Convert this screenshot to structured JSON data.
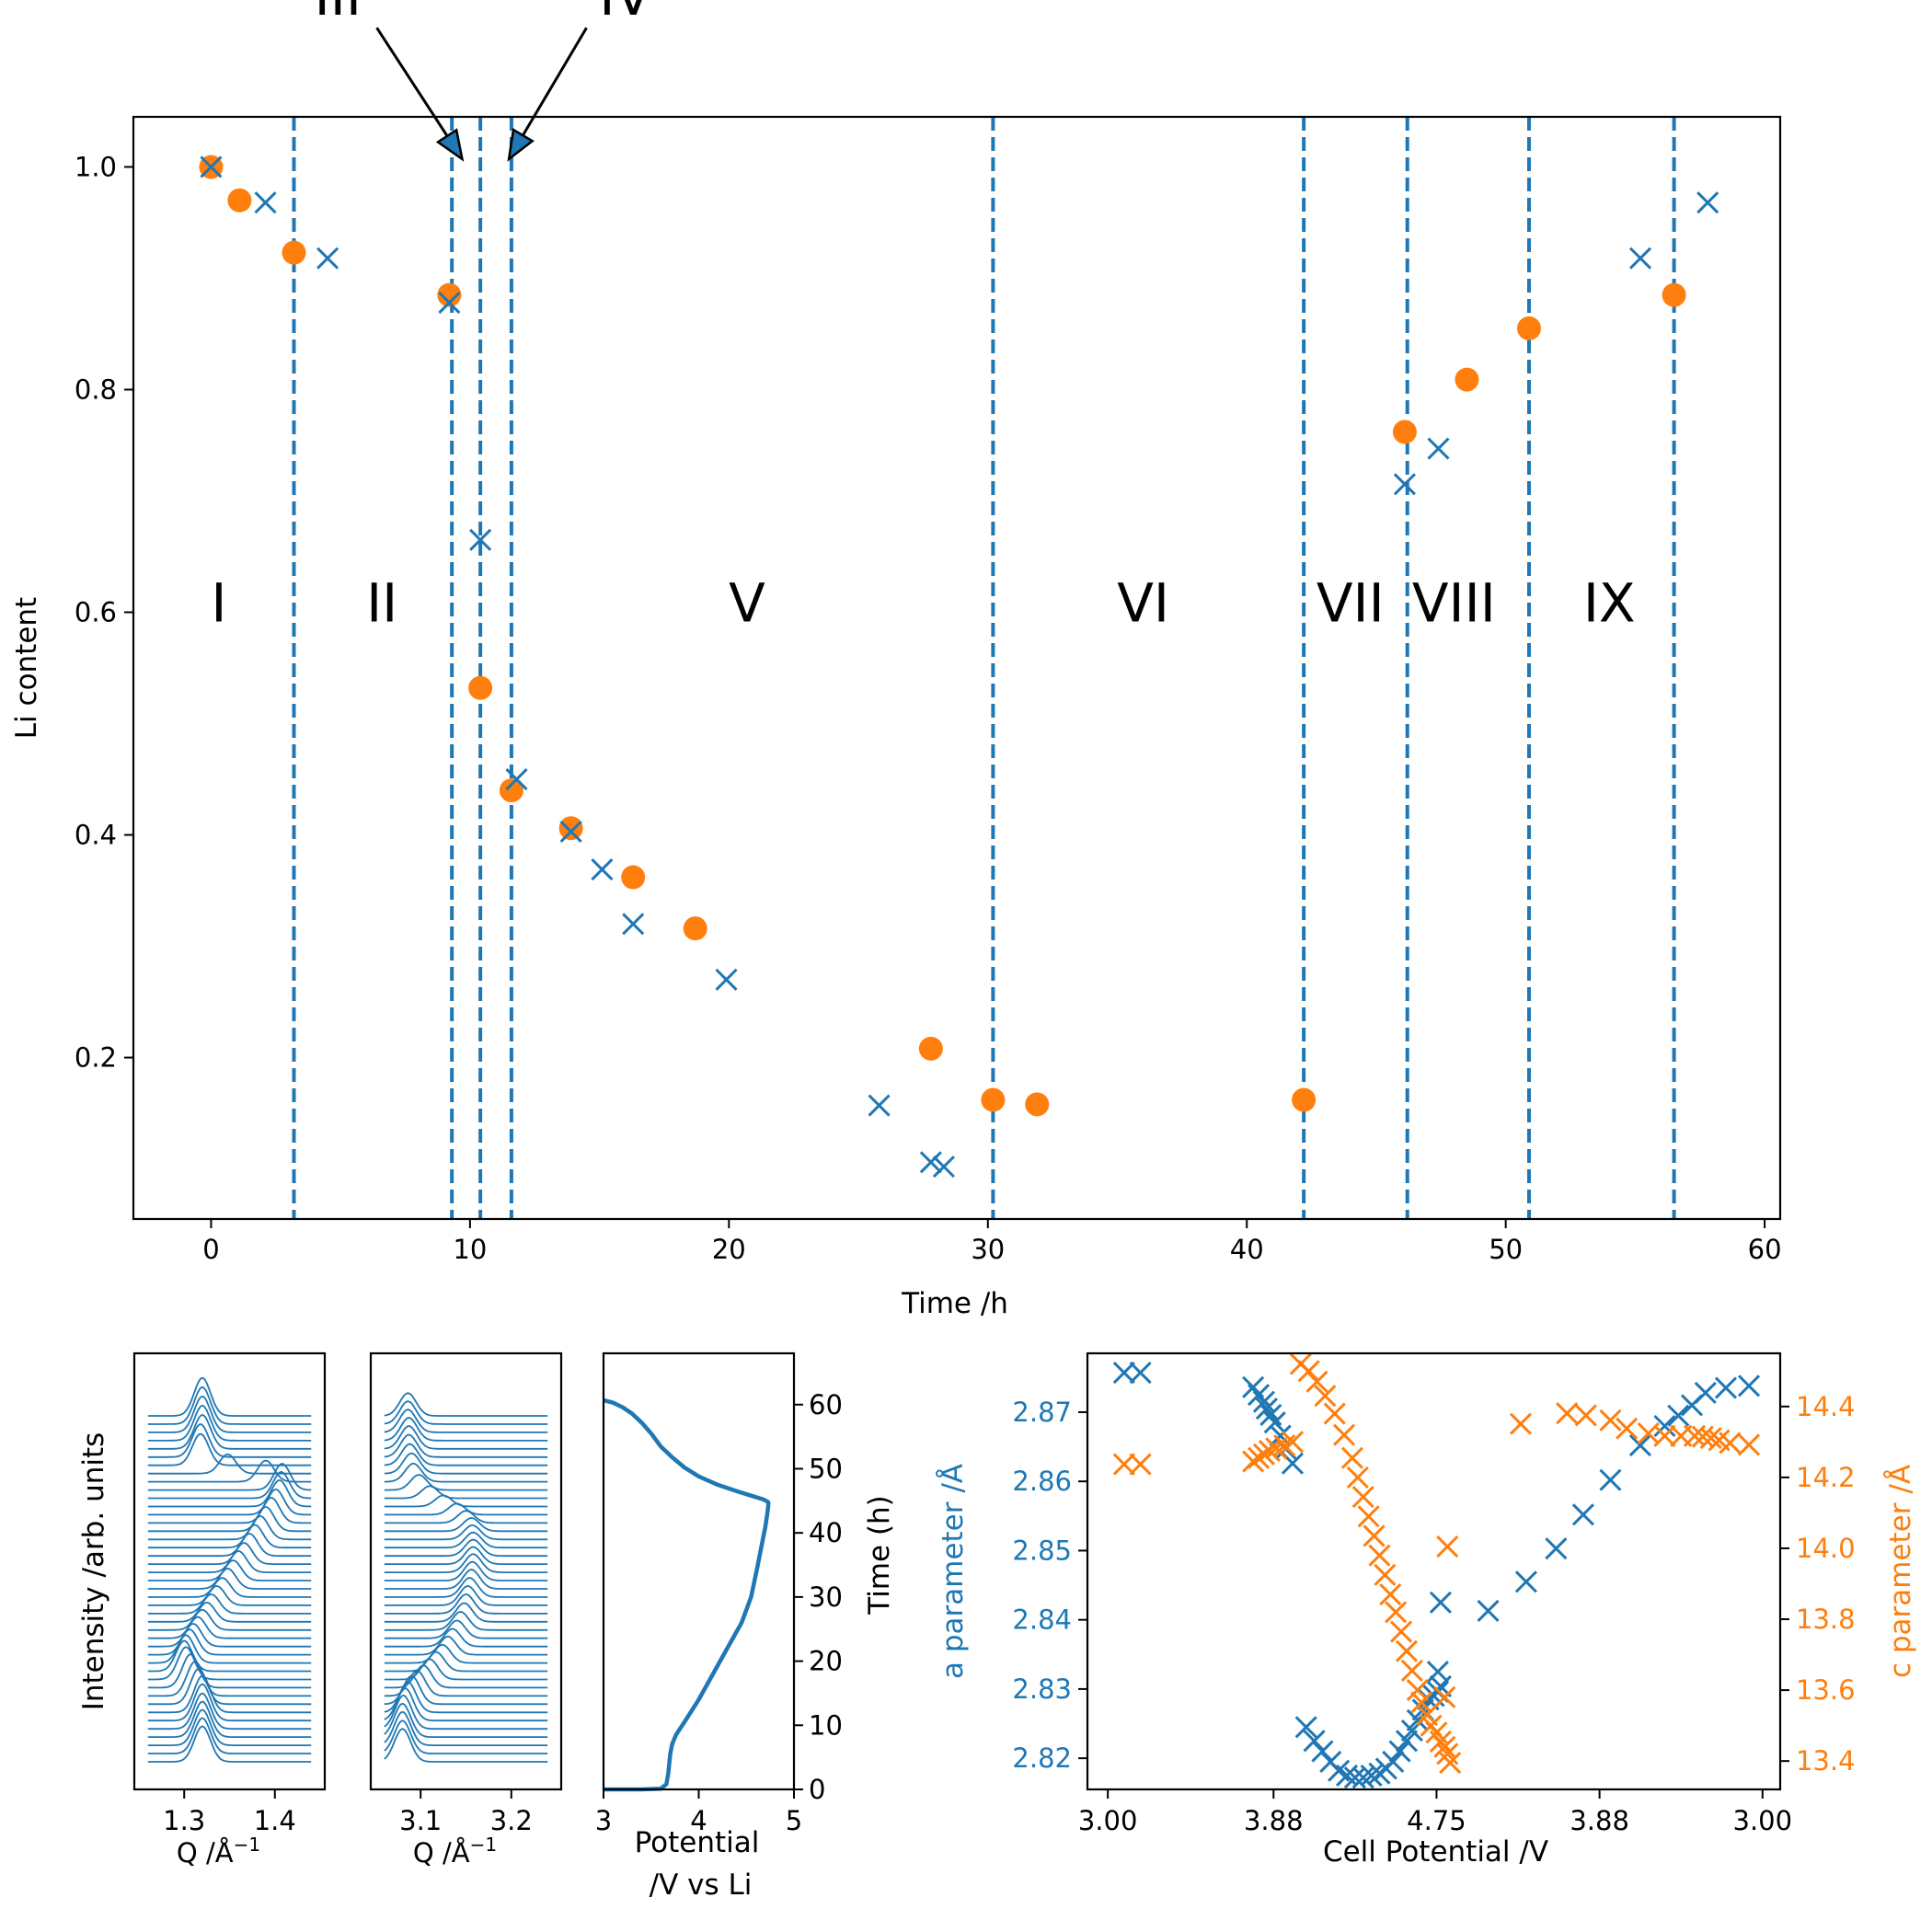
{
  "colors": {
    "blue": "#1f77b4",
    "orange": "#ff7f0e",
    "axis": "#000000"
  },
  "chart_data": [
    {
      "id": "main",
      "type": "scatter",
      "xlabel": "Time /h",
      "ylabel": "Li content",
      "xlim": [
        -3,
        60.6
      ],
      "ylim": [
        0.055,
        1.045
      ],
      "xticks": [
        0,
        10,
        20,
        30,
        40,
        50,
        60
      ],
      "yticks": [
        0.2,
        0.4,
        0.6,
        0.8,
        1.0
      ],
      "ytick_labels": [
        "0.2",
        "0.4",
        "0.6",
        "0.8",
        "1.0"
      ],
      "grid": false,
      "series": [
        {
          "marker": "circle",
          "color": "#ff7f0e",
          "x": [
            0.0,
            1.1,
            3.2,
            9.2,
            10.4,
            11.6,
            13.9,
            16.3,
            18.7,
            27.8,
            30.2,
            31.9,
            42.2,
            46.1,
            48.5,
            50.9,
            56.5
          ],
          "y": [
            1.0,
            0.97,
            0.923,
            0.885,
            0.532,
            0.44,
            0.406,
            0.362,
            0.316,
            0.208,
            0.162,
            0.158,
            0.162,
            0.762,
            0.809,
            0.855,
            0.885
          ]
        },
        {
          "marker": "x",
          "color": "#1f77b4",
          "x": [
            0.0,
            2.1,
            4.5,
            9.2,
            10.4,
            11.8,
            13.9,
            15.1,
            16.3,
            19.9,
            25.8,
            27.8,
            28.3,
            46.1,
            47.4,
            55.2,
            57.8
          ],
          "y": [
            1.0,
            0.968,
            0.918,
            0.878,
            0.665,
            0.45,
            0.403,
            0.369,
            0.32,
            0.27,
            0.157,
            0.106,
            0.102,
            0.715,
            0.747,
            0.918,
            0.968
          ]
        }
      ],
      "vlines": [
        3.2,
        9.3,
        10.4,
        11.6,
        30.2,
        42.2,
        46.2,
        50.9,
        56.5
      ],
      "regions": [
        {
          "label": "I",
          "x": 0.3,
          "y": 0.61
        },
        {
          "label": "II",
          "x": 6.6,
          "y": 0.61
        },
        {
          "label": "V",
          "x": 20.7,
          "y": 0.61
        },
        {
          "label": "VI",
          "x": 36.0,
          "y": 0.61
        },
        {
          "label": "VII",
          "x": 44.0,
          "y": 0.61
        },
        {
          "label": "VIII",
          "x": 48.0,
          "y": 0.61
        },
        {
          "label": "IX",
          "x": 54.0,
          "y": 0.61
        }
      ],
      "arrow_labels": [
        {
          "label": "III",
          "text_x": 4.9,
          "text_y": 1.155,
          "tail_x": 6.4,
          "tail_y": 1.125,
          "head_x": 9.7,
          "head_y": 1.007
        },
        {
          "label": "IV",
          "text_x": 16.0,
          "text_y": 1.155,
          "tail_x": 14.5,
          "tail_y": 1.125,
          "head_x": 11.5,
          "head_y": 1.007
        }
      ]
    },
    {
      "id": "xrd1",
      "type": "line",
      "xlabel": "Q /Å",
      "xlabel_sup": "−1",
      "ylabel": "Intensity /arb. units",
      "xlim": [
        1.245,
        1.455
      ],
      "xticks": [
        1.3,
        1.4
      ],
      "xtick_labels": [
        "1.3",
        "1.4"
      ],
      "n_traces": 43,
      "peak_centers": [
        1.32,
        1.32,
        1.32,
        1.32,
        1.32,
        1.32,
        1.32,
        1.316,
        1.312,
        1.307,
        1.302,
        1.3,
        1.302,
        1.306,
        1.31,
        1.315,
        1.32,
        1.325,
        1.33,
        1.336,
        1.342,
        1.348,
        1.354,
        1.36,
        1.366,
        1.372,
        1.378,
        1.384,
        1.39,
        1.396,
        1.401,
        1.405,
        1.407,
        1.408,
        1.39,
        1.348,
        1.318,
        1.318,
        1.32,
        1.32,
        1.32,
        1.32,
        1.32
      ],
      "peak_heights": [
        0.7,
        0.7,
        0.7,
        0.7,
        0.7,
        0.72,
        0.72,
        0.7,
        0.68,
        0.66,
        0.64,
        0.6,
        0.55,
        0.5,
        0.45,
        0.42,
        0.4,
        0.38,
        0.38,
        0.38,
        0.38,
        0.4,
        0.4,
        0.42,
        0.42,
        0.44,
        0.45,
        0.46,
        0.48,
        0.5,
        0.5,
        0.52,
        0.52,
        0.52,
        0.42,
        0.38,
        0.62,
        0.65,
        0.67,
        0.69,
        0.71,
        0.73,
        0.75
      ],
      "peak_width": 0.009
    },
    {
      "id": "xrd2",
      "type": "line",
      "xlabel": "Q /Å",
      "xlabel_sup": "−1",
      "xlim": [
        3.045,
        3.255
      ],
      "xticks": [
        3.1,
        3.2
      ],
      "xtick_labels": [
        "3.1",
        "3.2"
      ],
      "n_traces": 43,
      "peak_centers": [
        3.08,
        3.08,
        3.08,
        3.08,
        3.081,
        3.083,
        3.086,
        3.09,
        3.096,
        3.103,
        3.11,
        3.117,
        3.124,
        3.13,
        3.135,
        3.14,
        3.144,
        3.148,
        3.15,
        3.152,
        3.154,
        3.156,
        3.157,
        3.158,
        3.158,
        3.158,
        3.158,
        3.157,
        3.156,
        3.15,
        3.14,
        3.125,
        3.11,
        3.098,
        3.092,
        3.09,
        3.088,
        3.087,
        3.087,
        3.087,
        3.086,
        3.086,
        3.086
      ],
      "peak_heights": [
        0.65,
        0.65,
        0.66,
        0.66,
        0.66,
        0.64,
        0.6,
        0.56,
        0.5,
        0.44,
        0.4,
        0.38,
        0.36,
        0.36,
        0.35,
        0.35,
        0.36,
        0.37,
        0.38,
        0.38,
        0.38,
        0.38,
        0.37,
        0.36,
        0.34,
        0.32,
        0.3,
        0.28,
        0.26,
        0.24,
        0.22,
        0.22,
        0.24,
        0.3,
        0.36,
        0.4,
        0.42,
        0.44,
        0.45,
        0.45,
        0.45,
        0.45,
        0.45
      ],
      "peak_width": 0.009
    },
    {
      "id": "echem",
      "type": "line",
      "xlabel_lines": [
        "Potential",
        "/V vs Li"
      ],
      "ylabel": "Time (h)",
      "xlim": [
        3.0,
        5.0
      ],
      "ylim": [
        0,
        68
      ],
      "xticks": [
        3,
        4,
        5
      ],
      "yticks": [
        0,
        10,
        20,
        30,
        40,
        50,
        60
      ],
      "x": [
        3.0,
        3.4,
        3.6,
        3.66,
        3.68,
        3.7,
        3.72,
        3.76,
        3.85,
        4.0,
        4.15,
        4.3,
        4.45,
        4.55,
        4.62,
        4.66,
        4.7,
        4.72,
        4.73,
        4.73,
        4.68,
        4.55,
        4.4,
        4.2,
        4.0,
        3.85,
        3.72,
        3.6,
        3.5,
        3.4,
        3.3,
        3.2,
        3.1,
        3.0
      ],
      "y": [
        0.0,
        0.0,
        0.1,
        0.8,
        2.5,
        5.5,
        7.0,
        8.5,
        10.5,
        14.0,
        18.0,
        22.0,
        26.0,
        30.0,
        35.0,
        38.0,
        41.0,
        43.0,
        44.3,
        44.8,
        45.2,
        45.8,
        46.5,
        47.5,
        48.8,
        50.2,
        51.8,
        53.5,
        55.5,
        57.2,
        58.6,
        59.6,
        60.3,
        60.7
      ]
    },
    {
      "id": "lattice",
      "type": "scatter",
      "xlabel": "Cell Potential /V",
      "ylabel_left": "a parameter /Å",
      "ylabel_right": "c parameter /Å",
      "xlim": [
        -0.15,
        4.95
      ],
      "xticks": [
        0,
        1,
        2,
        3,
        4,
        5
      ],
      "xtick_labels": [
        "3.00",
        "3.88",
        "4.75",
        "3.88",
        "3.00"
      ],
      "xtick_positions": [
        0,
        1.22,
        2.42,
        3.62,
        4.82
      ],
      "ylim_left": [
        2.8155,
        2.8785
      ],
      "yticks_left": [
        2.82,
        2.83,
        2.84,
        2.85,
        2.86,
        2.87
      ],
      "ytick_labels_left": [
        "2.82",
        "2.83",
        "2.84",
        "2.85",
        "2.86",
        "2.87"
      ],
      "ylim_right": [
        13.32,
        14.55
      ],
      "yticks_right": [
        13.4,
        13.6,
        13.8,
        14.0,
        14.2,
        14.4
      ],
      "ytick_labels_right": [
        "13.4",
        "13.6",
        "13.8",
        "14.0",
        "14.2",
        "14.4"
      ],
      "series": [
        {
          "name": "a parameter",
          "marker": "x",
          "color": "#1f77b4",
          "axis": "left",
          "x": [
            0.12,
            0.24,
            1.07,
            1.11,
            1.15,
            1.17,
            1.2,
            1.23,
            1.27,
            1.31,
            1.36,
            1.46,
            1.52,
            1.58,
            1.64,
            1.7,
            1.76,
            1.82,
            1.88,
            1.94,
            2.0,
            2.05,
            2.1,
            2.15,
            2.2,
            2.24,
            2.28,
            2.32,
            2.36,
            2.4,
            2.43,
            2.45,
            2.43,
            2.45,
            2.8,
            3.08,
            3.3,
            3.5,
            3.7,
            3.92,
            4.1,
            4.2,
            4.3,
            4.4,
            4.55,
            4.72
          ],
          "y": [
            2.8757,
            2.8757,
            2.8736,
            2.8725,
            2.8715,
            2.8705,
            2.8696,
            2.8685,
            2.8666,
            2.8647,
            2.8626,
            2.8245,
            2.8225,
            2.821,
            2.8195,
            2.8182,
            2.8175,
            2.8172,
            2.8172,
            2.8175,
            2.8178,
            2.8185,
            2.8195,
            2.821,
            2.8225,
            2.824,
            2.8255,
            2.827,
            2.8285,
            2.829,
            2.8296,
            2.8304,
            2.8325,
            2.8425,
            2.8413,
            2.8455,
            2.8503,
            2.8552,
            2.8602,
            2.8652,
            2.868,
            2.8695,
            2.871,
            2.8728,
            2.8735,
            2.8738
          ]
        },
        {
          "name": "c parameter",
          "marker": "x",
          "color": "#ff7f0e",
          "axis": "right",
          "x": [
            0.12,
            0.24,
            1.07,
            1.11,
            1.15,
            1.19,
            1.24,
            1.3,
            1.36,
            1.42,
            1.48,
            1.54,
            1.6,
            1.67,
            1.74,
            1.8,
            1.84,
            1.88,
            1.92,
            1.96,
            2.0,
            2.04,
            2.08,
            2.12,
            2.16,
            2.2,
            2.24,
            2.28,
            2.31,
            2.35,
            2.38,
            2.42,
            2.45,
            2.48,
            2.5,
            2.52,
            2.48,
            2.5,
            3.04,
            3.38,
            3.52,
            3.7,
            3.82,
            3.98,
            4.1,
            4.22,
            4.32,
            4.38,
            4.44,
            4.5,
            4.58,
            4.72
          ],
          "y": [
            14.237,
            14.237,
            14.245,
            14.255,
            14.265,
            14.275,
            14.282,
            14.29,
            14.3,
            14.52,
            14.5,
            14.47,
            14.43,
            14.38,
            14.32,
            14.255,
            14.2,
            14.145,
            14.09,
            14.035,
            13.98,
            13.925,
            13.87,
            13.82,
            13.765,
            13.71,
            13.655,
            13.6,
            13.565,
            13.53,
            13.5,
            13.48,
            13.455,
            13.44,
            13.42,
            13.395,
            13.58,
            14.005,
            14.351,
            14.381,
            14.375,
            14.361,
            14.338,
            14.324,
            14.317,
            14.317,
            14.317,
            14.315,
            14.311,
            14.305,
            14.297,
            14.292
          ]
        }
      ]
    }
  ]
}
